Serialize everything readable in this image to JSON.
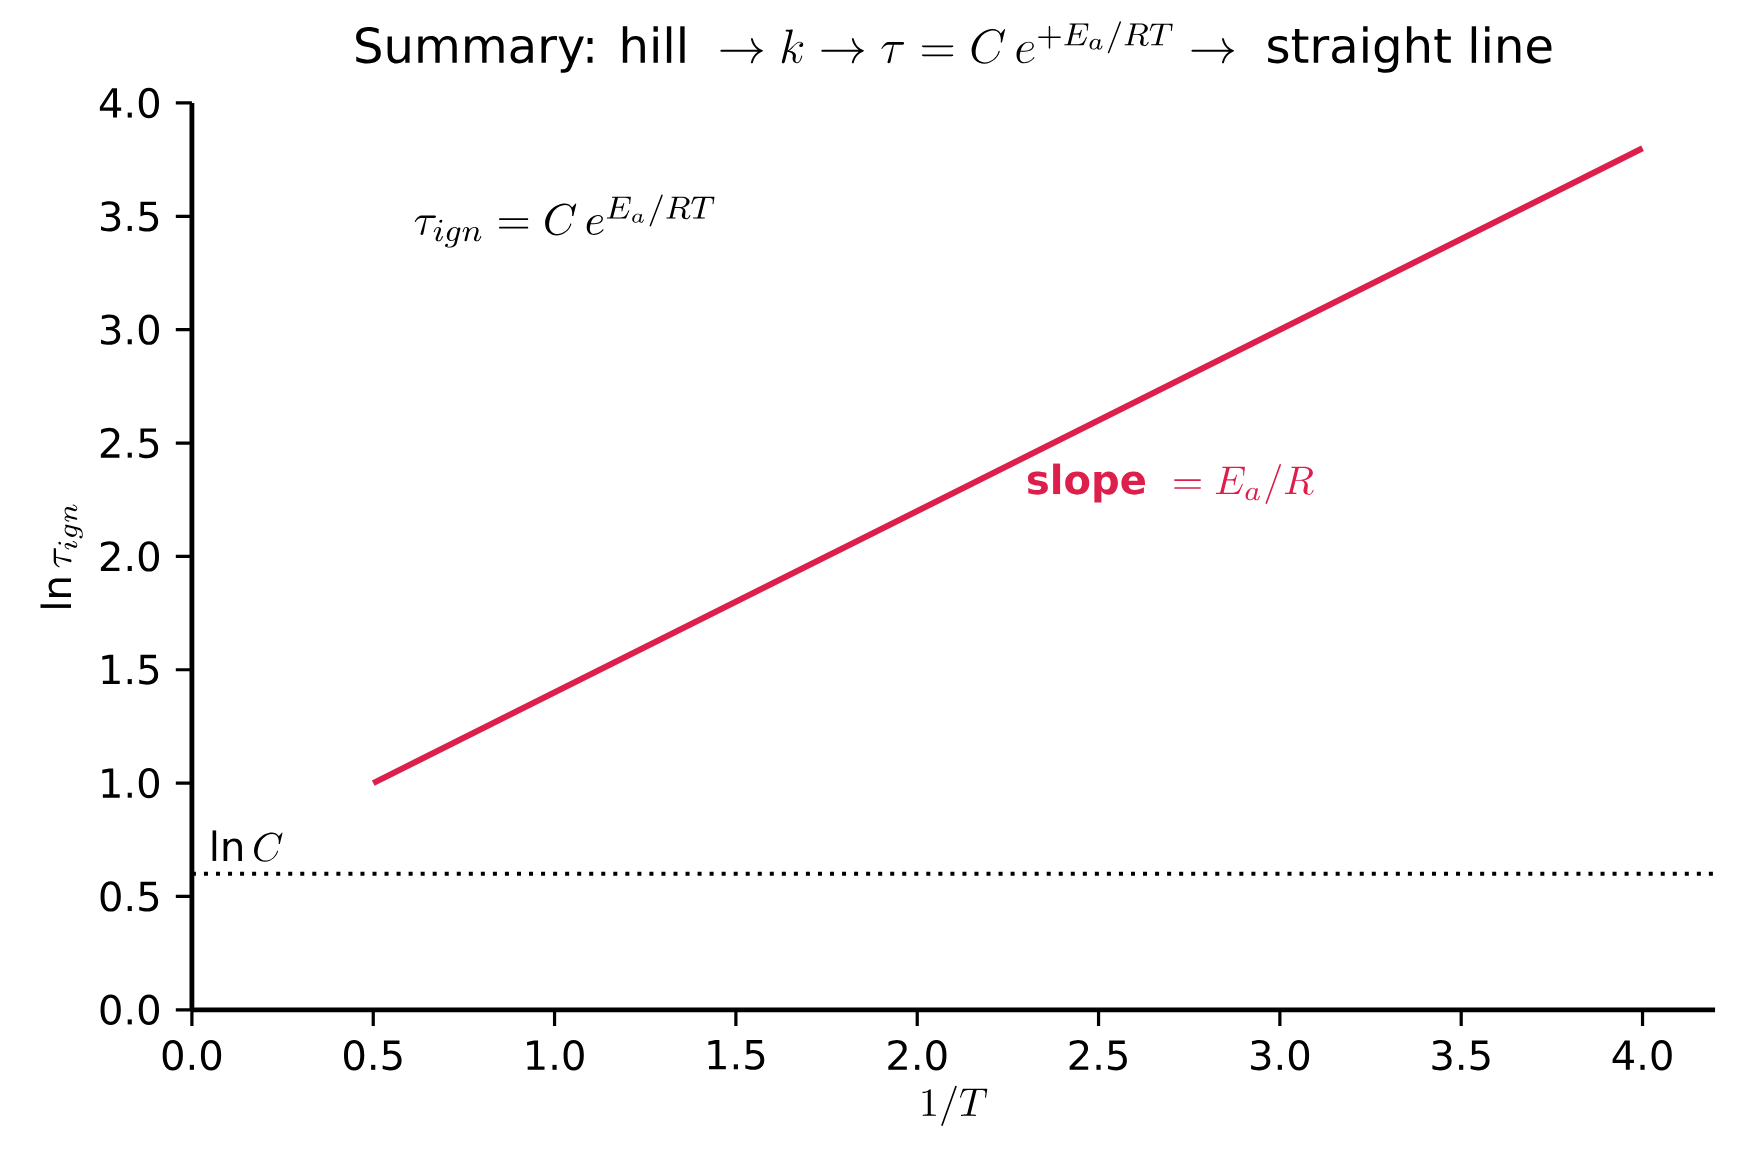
{
  "chart_data": {
    "type": "line",
    "title": "\\mbox{Summary: hill }\\to k\\to\\tau=C\\,e^{+E_a/RT}\\to\\mbox{ straight line}",
    "xlabel": "1/T",
    "ylabel": "\\ln\\tau_{ign}",
    "annotations": [
      "\\tau_{ign}=C\\,e^{E_a/RT}",
      "\\mbox{\\bfseries slope }=E_a/R"
    ],
    "series": [
      {
        "color": "#dc1f4b",
        "x": [
          0.5,
          4.0
        ],
        "values": [
          1.0,
          3.8
        ]
      }
    ],
    "ref_lines": [
      {
        "axis": "y",
        "value": 0.6,
        "label": "\\ln C",
        "color": "#000000",
        "line_style": "dotted"
      }
    ],
    "xlim": [
      0,
      4.2
    ],
    "ylim": [
      0,
      4.0
    ],
    "xticks": [
      {
        "value": 0,
        "label": "0.0"
      },
      {
        "value": 0.5,
        "label": "0.5"
      },
      {
        "value": 1,
        "label": "1.0"
      },
      {
        "value": 1.5,
        "label": "1.5"
      },
      {
        "value": 2,
        "label": "2.0"
      },
      {
        "value": 2.5,
        "label": "2.5"
      },
      {
        "value": 3,
        "label": "3.0"
      },
      {
        "value": 3.5,
        "label": "3.5"
      },
      {
        "value": 4,
        "label": "4.0"
      }
    ],
    "yticks": [
      {
        "value": 0,
        "label": "0.0"
      },
      {
        "value": 0.5,
        "label": "0.5"
      },
      {
        "value": 1,
        "label": "1.0"
      },
      {
        "value": 1.5,
        "label": "1.5"
      },
      {
        "value": 2,
        "label": "2.0"
      },
      {
        "value": 2.5,
        "label": "2.5"
      },
      {
        "value": 3,
        "label": "3.0"
      },
      {
        "value": 3.5,
        "label": "3.5"
      },
      {
        "value": 4,
        "label": "4.0"
      }
    ],
    "marker": "none",
    "line_style": "solid"
  }
}
